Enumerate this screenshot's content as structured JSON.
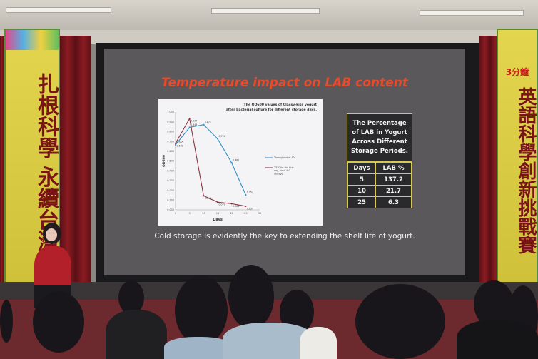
{
  "slide": {
    "title": "Temperature impact on LAB content",
    "caption": "Cold storage is evidently the key to extending the shelf life of yogurt."
  },
  "table": {
    "heading": "The Percentage of LAB in Yogurt Across Different Storage Periods.",
    "columns": [
      "Days",
      "LAB %"
    ],
    "rows": [
      [
        "5",
        "137.2"
      ],
      [
        "10",
        "21.7"
      ],
      [
        "25",
        "6.3"
      ]
    ]
  },
  "chart_data": {
    "type": "line",
    "title": "The OD600 values of Classy-kiss yogurt after bacterial culture for different storage days.",
    "xlabel": "Days",
    "ylabel": "OD600",
    "xlim": [
      0,
      30
    ],
    "ylim": [
      0,
      1
    ],
    "x_ticks": [
      "0",
      "5",
      "10",
      "15",
      "20",
      "25",
      "30"
    ],
    "y_ticks": [
      "0.000",
      "0.100",
      "0.200",
      "0.300",
      "0.400",
      "0.500",
      "0.600",
      "0.700",
      "0.800",
      "0.900",
      "1.000"
    ],
    "legend_position": "right",
    "series": [
      {
        "name": "Throughout at 4°C",
        "color": "#2d8fc8",
        "x": [
          0,
          5,
          10,
          15,
          20,
          25
        ],
        "y": [
          0.665,
          0.843,
          0.871,
          0.726,
          0.481,
          0.153
        ],
        "labels": [
          "0.665",
          "0.843",
          "0.871",
          "0.726",
          "0.481",
          "0.153"
        ]
      },
      {
        "name": "25°C for the first day, then 4°C storage",
        "color": "#8a3540",
        "x": [
          0,
          5,
          10,
          15,
          20,
          25
        ],
        "y": [
          0.68,
          0.934,
          0.144,
          0.079,
          0.063,
          0.037
        ],
        "labels": [
          "0.680",
          "0.934",
          "0.144",
          "0.079",
          "0.063",
          "0.037"
        ]
      }
    ]
  },
  "banners": {
    "left": "扎根科學 永續台灣",
    "right_top": "3分鐘",
    "right": "英語科學創新挑戰賽"
  },
  "colors": {
    "title": "#e84a2a",
    "accent": "#d8c84a"
  }
}
